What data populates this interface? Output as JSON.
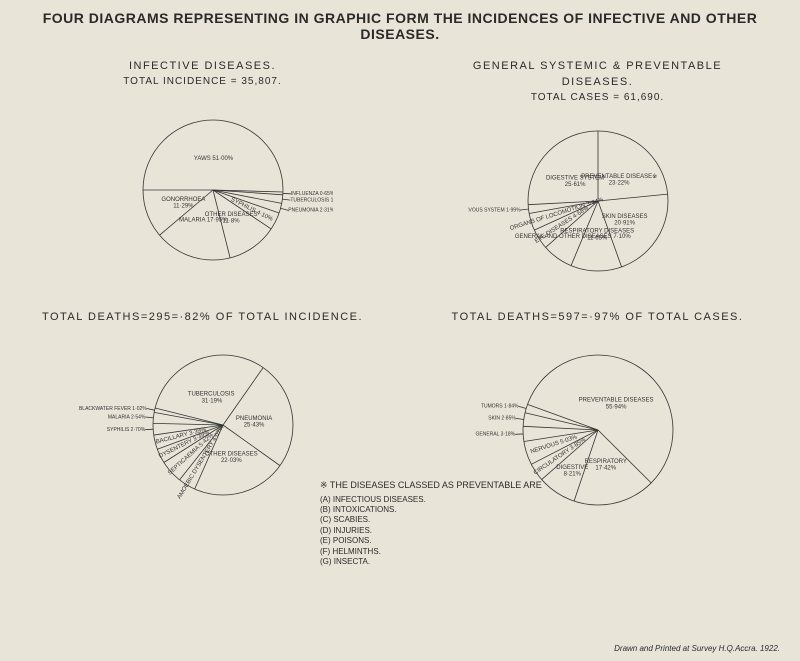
{
  "main_title": "FOUR DIAGRAMS REPRESENTING IN GRAPHIC FORM THE INCIDENCES OF INFECTIVE  AND OTHER DISEASES.",
  "credit": "Drawn and Printed at Survey H.Q.Accra. 1922.",
  "footnote": {
    "title": "※ THE DISEASES CLASSED AS PREVENTABLE ARE",
    "items": [
      "(A) INFECTIOUS DISEASES.",
      "(B) INTOXICATIONS.",
      "(C) SCABIES.",
      "(D) INJURIES.",
      "(E) POISONS.",
      "(F) HELMINTHS.",
      "(G) INSECTA."
    ]
  },
  "charts": {
    "topleft": {
      "title": "INFECTIVE    DISEASES.",
      "sub": "TOTAL INCIDENCE = 35,807.",
      "slices": [
        {
          "label": "YAWS  51·00%",
          "value": 51.0
        },
        {
          "label": "INFLUENZA 0·65%",
          "value": 0.65
        },
        {
          "label": "TUBERCULOSIS 1·98%",
          "value": 1.98
        },
        {
          "label": "PNEUMONIA 2·31%",
          "value": 2.31
        },
        {
          "label": "SYPHILIS  4·10%",
          "value": 4.1
        },
        {
          "label": "OTHER DISEASES 11·8%",
          "value": 11.8
        },
        {
          "label": "MALARIA 17·95%",
          "value": 17.95
        },
        {
          "label": "GONORRHOEA 11·29%",
          "value": 11.29
        }
      ]
    },
    "topright": {
      "title": "GENERAL SYSTEMIC & PREVENTABLE",
      "title2": "DISEASES.",
      "sub": "TOTAL CASES = 61,690.",
      "slices": [
        {
          "label": "PREVENTABLE DISEASE※ 23·22%",
          "value": 23.22
        },
        {
          "label": "SKIN DISEASES 20·91%",
          "value": 20.91
        },
        {
          "label": "RESPIRATORY DISEASES 11·65%",
          "value": 11.65
        },
        {
          "label": "GENERAL AND OTHER DISEASES 7·10%",
          "value": 7.1
        },
        {
          "label": "EYE DISEASES 4·68%",
          "value": 4.68
        },
        {
          "label": "ORGANS OF LOCOMOTION 3·94%",
          "value": 3.94
        },
        {
          "label": "NERVOUS SYSTEM 1·99%",
          "value": 1.99
        },
        {
          "label": "DIGESTIVE SYSTEM 25·61%",
          "value": 25.61
        }
      ]
    },
    "bottomleft": {
      "title": "TOTAL DEATHS=295=·82% OF TOTAL INCIDENCE.",
      "slices": [
        {
          "label": "PNEUMONIA 25·43%",
          "value": 25.43
        },
        {
          "label": "OTHER DISEASES 22·03%",
          "value": 22.03
        },
        {
          "label": "AMOEBIC DYSENTERY 4·07%",
          "value": 4.07
        },
        {
          "label": "SEPTICAEMIA 5·42%",
          "value": 5.42
        },
        {
          "label": "DYSENTERY 3·39%",
          "value": 3.39
        },
        {
          "label": "BACILLARY 3·39%",
          "value": 3.39
        },
        {
          "label": "SYPHILIS 2·70%",
          "value": 2.7
        },
        {
          "label": "MALARIA 2·54%",
          "value": 2.54
        },
        {
          "label": "BLACKWATER FEVER 1·02%",
          "value": 1.02
        },
        {
          "label": "TUBERCULOSIS  31·19%",
          "value": 31.19
        }
      ]
    },
    "bottomright": {
      "title": "TOTAL DEATHS=597=·97% OF TOTAL CASES.",
      "slices": [
        {
          "label": "PREVENTABLE DISEASES 55·94%",
          "value": 55.94
        },
        {
          "label": "RESPIRATORY 17·42%",
          "value": 17.42
        },
        {
          "label": "DIGESTIVE 8·21%",
          "value": 8.21
        },
        {
          "label": "CIRCULATORY 3·85%",
          "value": 3.85
        },
        {
          "label": "NERVOUS 5·03%",
          "value": 5.03
        },
        {
          "label": "GENERAL 3·18%",
          "value": 3.18
        },
        {
          "label": "SKIN 2·85%",
          "value": 2.85
        },
        {
          "label": "TUMORS 1·84%",
          "value": 1.84
        }
      ]
    }
  },
  "style": {
    "bg": "#e8e4d8",
    "stroke": "#333333",
    "radius": 70
  }
}
